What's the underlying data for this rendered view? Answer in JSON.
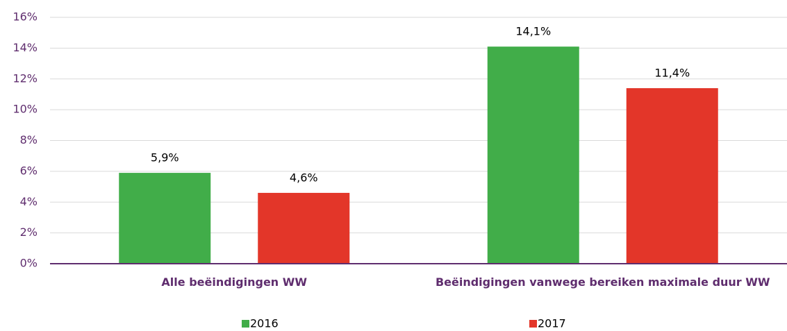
{
  "chart_data": {
    "type": "bar",
    "categories": [
      "Alle beëindigingen WW",
      "Beëindigingen vanwege bereiken maximale duur WW"
    ],
    "series": [
      {
        "name": "2016",
        "color": "#41ad49",
        "values": [
          5.9,
          14.1
        ],
        "value_labels": [
          "5,9%",
          "14,1%"
        ]
      },
      {
        "name": "2017",
        "color": "#e33629",
        "values": [
          4.6,
          11.4
        ],
        "value_labels": [
          "4,6%",
          "11,4%"
        ]
      }
    ],
    "ylim": [
      0,
      16
    ],
    "yticks": [
      {
        "value": 0,
        "label": "0%"
      },
      {
        "value": 2,
        "label": "2%"
      },
      {
        "value": 4,
        "label": "4%"
      },
      {
        "value": 6,
        "label": "6%"
      },
      {
        "value": 8,
        "label": "8%"
      },
      {
        "value": 10,
        "label": "10%"
      },
      {
        "value": 12,
        "label": "12%"
      },
      {
        "value": 14,
        "label": "14%"
      },
      {
        "value": 16,
        "label": "16%"
      }
    ],
    "grid": true,
    "legend": "bottom"
  }
}
